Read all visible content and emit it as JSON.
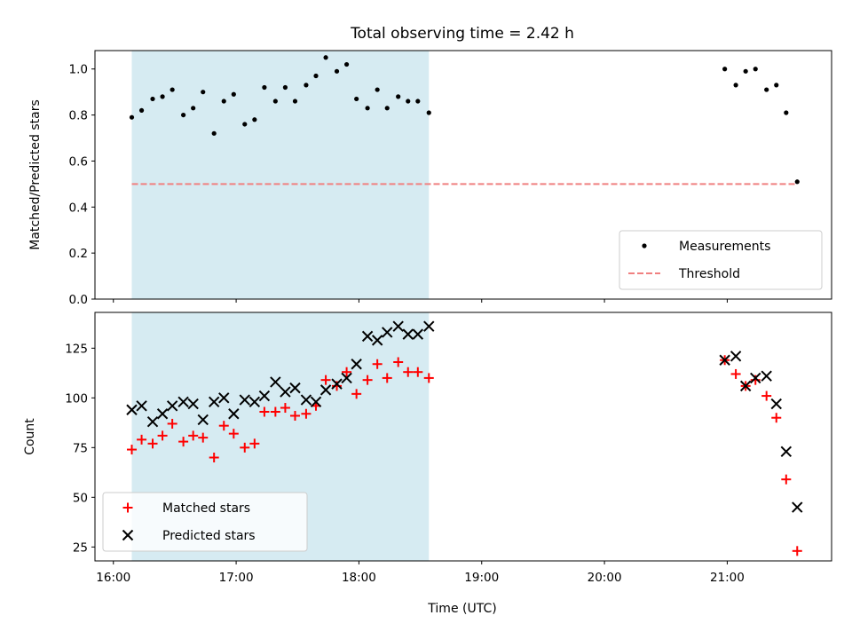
{
  "chart_data": {
    "type": "scatter",
    "title": "Total observing time = 2.42 h",
    "x_axis": {
      "label": "Time (UTC)",
      "tick_labels": [
        "16:00",
        "17:00",
        "18:00",
        "19:00",
        "20:00",
        "21:00"
      ],
      "tick_values_hours": [
        16,
        17,
        18,
        19,
        20,
        21
      ],
      "range_hours": [
        15.85,
        21.85
      ]
    },
    "shaded_interval_hours": [
      16.15,
      18.57
    ],
    "shade_color": "#add8e6",
    "panels": [
      {
        "ylabel": "Matched/Predicted stars",
        "ylim": [
          0,
          1.08
        ],
        "yticks": [
          0.0,
          0.2,
          0.4,
          0.6,
          0.8,
          1.0
        ],
        "ytick_labels": [
          "0.0",
          "0.2",
          "0.4",
          "0.6",
          "0.8",
          "1.0"
        ],
        "legend_position": "lower right",
        "series": [
          {
            "name": "Measurements",
            "marker": "dot",
            "color": "#000000",
            "x": [
              16.15,
              16.23,
              16.32,
              16.4,
              16.48,
              16.57,
              16.65,
              16.73,
              16.82,
              16.9,
              16.98,
              17.07,
              17.15,
              17.23,
              17.32,
              17.4,
              17.48,
              17.57,
              17.65,
              17.73,
              17.82,
              17.9,
              17.98,
              18.07,
              18.15,
              18.23,
              18.32,
              18.4,
              18.48,
              18.57,
              20.98,
              21.07,
              21.15,
              21.23,
              21.32,
              21.4,
              21.48,
              21.57
            ],
            "y": [
              0.79,
              0.82,
              0.87,
              0.88,
              0.91,
              0.8,
              0.83,
              0.9,
              0.72,
              0.86,
              0.89,
              0.76,
              0.78,
              0.92,
              0.86,
              0.92,
              0.86,
              0.93,
              0.97,
              1.05,
              0.99,
              1.02,
              0.87,
              0.83,
              0.91,
              0.83,
              0.88,
              0.86,
              0.86,
              0.81,
              1.0,
              0.93,
              0.99,
              1.0,
              0.91,
              0.93,
              0.81,
              0.51
            ]
          },
          {
            "name": "Threshold",
            "marker": "dashed-line",
            "color": "#f08080",
            "x": [
              16.15,
              21.57
            ],
            "y": [
              0.5,
              0.5
            ]
          }
        ]
      },
      {
        "ylabel": "Count",
        "ylim": [
          18,
          143
        ],
        "yticks": [
          25,
          50,
          75,
          100,
          125
        ],
        "ytick_labels": [
          "25",
          "50",
          "75",
          "100",
          "125"
        ],
        "legend_position": "lower left",
        "series": [
          {
            "name": "Matched stars",
            "marker": "plus",
            "color": "#ff0000",
            "x": [
              16.15,
              16.23,
              16.32,
              16.4,
              16.48,
              16.57,
              16.65,
              16.73,
              16.82,
              16.9,
              16.98,
              17.07,
              17.15,
              17.23,
              17.32,
              17.4,
              17.48,
              17.57,
              17.65,
              17.73,
              17.82,
              17.9,
              17.98,
              18.07,
              18.15,
              18.23,
              18.32,
              18.4,
              18.48,
              18.57,
              20.98,
              21.07,
              21.15,
              21.23,
              21.32,
              21.4,
              21.48,
              21.57
            ],
            "y": [
              74,
              79,
              77,
              81,
              87,
              78,
              81,
              80,
              70,
              86,
              82,
              75,
              77,
              93,
              93,
              95,
              91,
              92,
              96,
              109,
              106,
              113,
              102,
              109,
              117,
              110,
              118,
              113,
              113,
              110,
              119,
              112,
              106,
              109,
              101,
              90,
              59,
              23
            ]
          },
          {
            "name": "Predicted stars",
            "marker": "x",
            "color": "#000000",
            "x": [
              16.15,
              16.23,
              16.32,
              16.4,
              16.48,
              16.57,
              16.65,
              16.73,
              16.82,
              16.9,
              16.98,
              17.07,
              17.15,
              17.23,
              17.32,
              17.4,
              17.48,
              17.57,
              17.65,
              17.73,
              17.82,
              17.9,
              17.98,
              18.07,
              18.15,
              18.23,
              18.32,
              18.4,
              18.48,
              18.57,
              20.98,
              21.07,
              21.15,
              21.23,
              21.32,
              21.4,
              21.48,
              21.57
            ],
            "y": [
              94,
              96,
              88,
              92,
              96,
              98,
              97,
              89,
              98,
              100,
              92,
              99,
              98,
              101,
              108,
              103,
              105,
              99,
              98,
              104,
              107,
              110,
              117,
              131,
              129,
              133,
              136,
              132,
              132,
              136,
              119,
              121,
              106,
              110,
              111,
              97,
              73,
              45
            ]
          }
        ]
      }
    ]
  }
}
